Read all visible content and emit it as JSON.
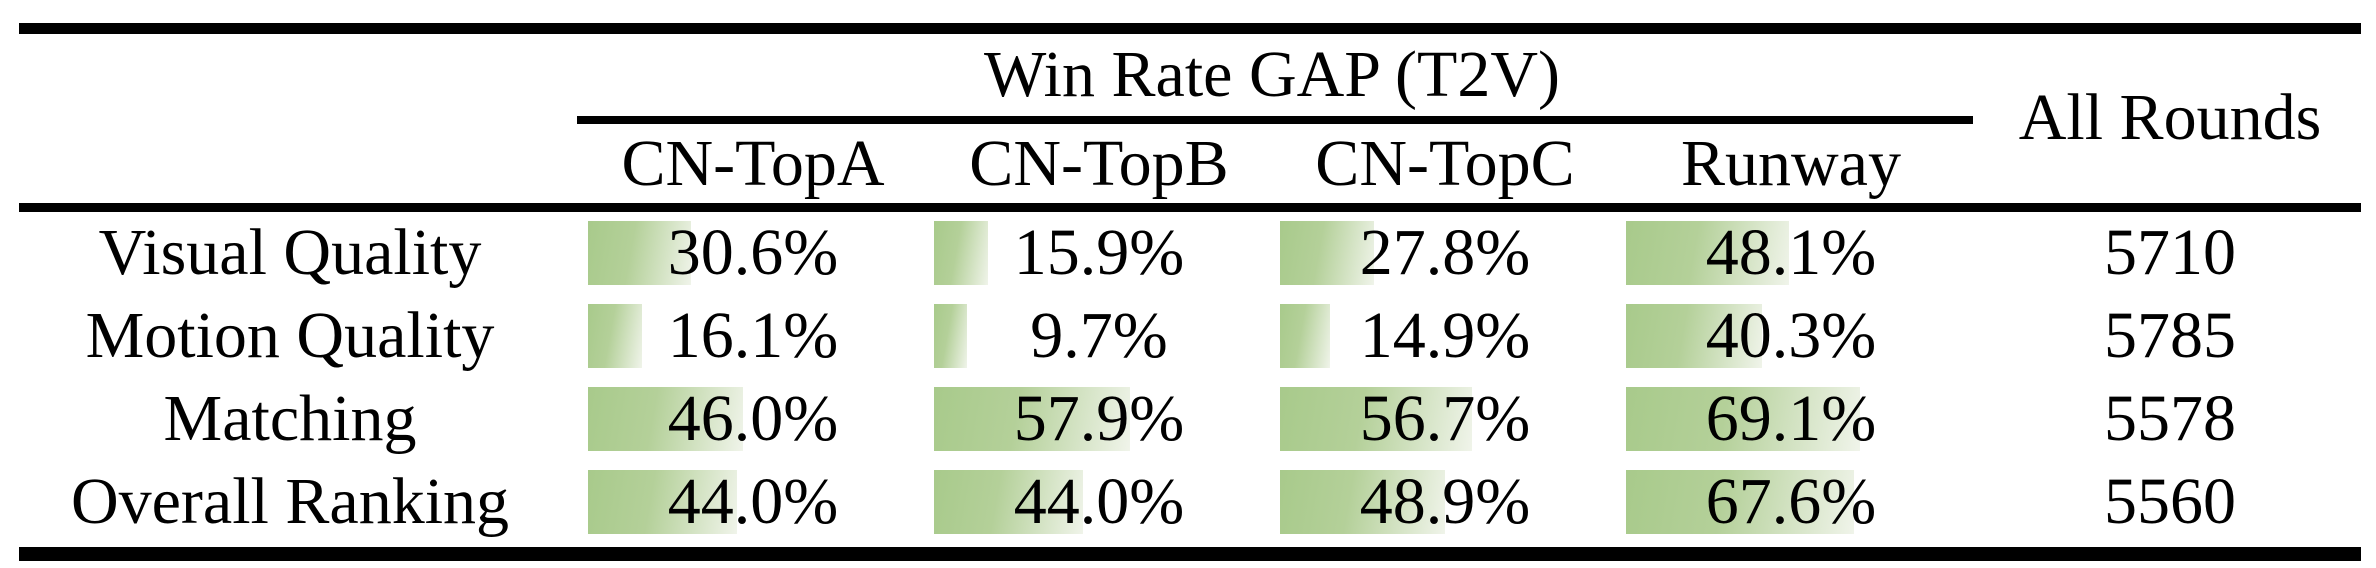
{
  "table": {
    "group_header": "Win Rate GAP (T2V)",
    "all_rounds_header": "All Rounds",
    "columns": [
      "CN-TopA",
      "CN-TopB",
      "CN-TopC",
      "Runway"
    ],
    "rows": [
      {
        "label": "Visual Quality",
        "values": [
          {
            "text": "30.6%",
            "percent": 30.6
          },
          {
            "text": "15.9%",
            "percent": 15.9
          },
          {
            "text": "27.8%",
            "percent": 27.8
          },
          {
            "text": "48.1%",
            "percent": 48.1
          }
        ],
        "all_rounds": "5710"
      },
      {
        "label": "Motion Quality",
        "values": [
          {
            "text": "16.1%",
            "percent": 16.1
          },
          {
            "text": "9.7%",
            "percent": 9.7
          },
          {
            "text": "14.9%",
            "percent": 14.9
          },
          {
            "text": "40.3%",
            "percent": 40.3
          }
        ],
        "all_rounds": "5785"
      },
      {
        "label": "Matching",
        "values": [
          {
            "text": "46.0%",
            "percent": 46.0
          },
          {
            "text": "57.9%",
            "percent": 57.9
          },
          {
            "text": "56.7%",
            "percent": 56.7
          },
          {
            "text": "69.1%",
            "percent": 69.1
          }
        ],
        "all_rounds": "5578"
      },
      {
        "label": "Overall Ranking",
        "values": [
          {
            "text": "44.0%",
            "percent": 44.0
          },
          {
            "text": "44.0%",
            "percent": 44.0
          },
          {
            "text": "48.9%",
            "percent": 48.9
          },
          {
            "text": "67.6%",
            "percent": 67.6
          }
        ],
        "all_rounds": "5560"
      }
    ],
    "bar_colors": {
      "start": "#a8ca8b",
      "mid": "#b4d099",
      "end": "#f0f4ea"
    },
    "text_color": "#000000"
  },
  "chart_data": {
    "type": "table",
    "title": "Win Rate GAP (T2V)",
    "columns": [
      "CN-TopA",
      "CN-TopB",
      "CN-TopC",
      "Runway",
      "All Rounds"
    ],
    "row_labels": [
      "Visual Quality",
      "Motion Quality",
      "Matching",
      "Overall Ranking"
    ],
    "series": [
      {
        "name": "CN-TopA",
        "values": [
          30.6,
          16.1,
          46.0,
          44.0
        ]
      },
      {
        "name": "CN-TopB",
        "values": [
          15.9,
          9.7,
          57.9,
          44.0
        ]
      },
      {
        "name": "CN-TopC",
        "values": [
          27.8,
          14.9,
          56.7,
          48.9
        ]
      },
      {
        "name": "Runway",
        "values": [
          48.1,
          40.3,
          69.1,
          67.6
        ]
      }
    ],
    "all_rounds": [
      5710,
      5785,
      5578,
      5560
    ],
    "value_unit": "%",
    "bar_scale": [
      0,
      100
    ],
    "legend_position": "none"
  }
}
